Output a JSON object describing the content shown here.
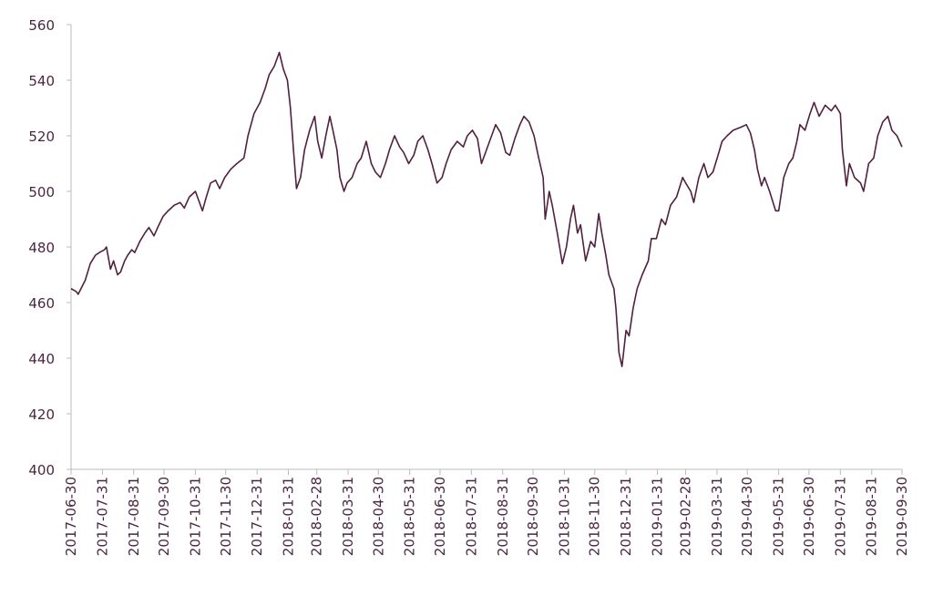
{
  "chart_data": {
    "type": "line",
    "x": [
      "2017-06-30",
      "2017-07-05",
      "2017-07-07",
      "2017-07-14",
      "2017-07-19",
      "2017-07-24",
      "2017-07-28",
      "2017-08-02",
      "2017-08-04",
      "2017-08-08",
      "2017-08-11",
      "2017-08-15",
      "2017-08-18",
      "2017-08-22",
      "2017-08-25",
      "2017-08-29",
      "2017-09-01",
      "2017-09-06",
      "2017-09-11",
      "2017-09-15",
      "2017-09-20",
      "2017-09-25",
      "2017-09-29",
      "2017-10-04",
      "2017-10-10",
      "2017-10-16",
      "2017-10-20",
      "2017-10-25",
      "2017-10-31",
      "2017-11-03",
      "2017-11-07",
      "2017-11-10",
      "2017-11-15",
      "2017-11-20",
      "2017-11-24",
      "2017-11-29",
      "2017-12-05",
      "2017-12-11",
      "2017-12-18",
      "2017-12-22",
      "2017-12-28",
      "2018-01-03",
      "2018-01-08",
      "2018-01-12",
      "2018-01-17",
      "2018-01-22",
      "2018-01-26",
      "2018-01-30",
      "2018-02-02",
      "2018-02-05",
      "2018-02-08",
      "2018-02-12",
      "2018-02-16",
      "2018-02-21",
      "2018-02-26",
      "2018-03-01",
      "2018-03-05",
      "2018-03-09",
      "2018-03-13",
      "2018-03-16",
      "2018-03-20",
      "2018-03-23",
      "2018-03-27",
      "2018-03-30",
      "2018-04-04",
      "2018-04-09",
      "2018-04-13",
      "2018-04-18",
      "2018-04-23",
      "2018-04-27",
      "2018-05-02",
      "2018-05-07",
      "2018-05-11",
      "2018-05-16",
      "2018-05-21",
      "2018-05-25",
      "2018-05-30",
      "2018-06-04",
      "2018-06-08",
      "2018-06-13",
      "2018-06-18",
      "2018-06-22",
      "2018-06-27",
      "2018-07-02",
      "2018-07-06",
      "2018-07-11",
      "2018-07-17",
      "2018-07-23",
      "2018-07-27",
      "2018-08-01",
      "2018-08-06",
      "2018-08-10",
      "2018-08-15",
      "2018-08-20",
      "2018-08-24",
      "2018-08-29",
      "2018-09-03",
      "2018-09-07",
      "2018-09-12",
      "2018-09-17",
      "2018-09-21",
      "2018-09-26",
      "2018-10-01",
      "2018-10-05",
      "2018-10-10",
      "2018-10-12",
      "2018-10-16",
      "2018-10-19",
      "2018-10-24",
      "2018-10-29",
      "2018-11-02",
      "2018-11-06",
      "2018-11-09",
      "2018-11-13",
      "2018-11-16",
      "2018-11-21",
      "2018-11-26",
      "2018-11-30",
      "2018-12-04",
      "2018-12-07",
      "2018-12-11",
      "2018-12-14",
      "2018-12-19",
      "2018-12-21",
      "2018-12-24",
      "2018-12-27",
      "2018-12-31",
      "2019-01-03",
      "2019-01-07",
      "2019-01-11",
      "2019-01-16",
      "2019-01-22",
      "2019-01-25",
      "2019-01-30",
      "2019-02-04",
      "2019-02-08",
      "2019-02-13",
      "2019-02-19",
      "2019-02-25",
      "2019-02-28",
      "2019-03-05",
      "2019-03-08",
      "2019-03-13",
      "2019-03-18",
      "2019-03-22",
      "2019-03-27",
      "2019-04-01",
      "2019-04-05",
      "2019-04-10",
      "2019-04-16",
      "2019-04-23",
      "2019-04-29",
      "2019-05-03",
      "2019-05-07",
      "2019-05-10",
      "2019-05-14",
      "2019-05-17",
      "2019-05-22",
      "2019-05-28",
      "2019-05-31",
      "2019-06-05",
      "2019-06-10",
      "2019-06-14",
      "2019-06-18",
      "2019-06-21",
      "2019-06-26",
      "2019-07-01",
      "2019-07-05",
      "2019-07-10",
      "2019-07-16",
      "2019-07-22",
      "2019-07-26",
      "2019-07-31",
      "2019-08-02",
      "2019-08-06",
      "2019-08-09",
      "2019-08-14",
      "2019-08-20",
      "2019-08-23",
      "2019-08-28",
      "2019-09-02",
      "2019-09-06",
      "2019-09-11",
      "2019-09-16",
      "2019-09-20",
      "2019-09-25",
      "2019-09-30"
    ],
    "series": [
      {
        "color": "#52203f",
        "values": [
          465,
          464,
          463,
          468,
          474,
          477,
          478,
          479,
          480,
          472,
          475,
          470,
          471,
          475,
          477,
          479,
          478,
          482,
          485,
          487,
          484,
          488,
          491,
          493,
          495,
          496,
          494,
          498,
          500,
          497,
          493,
          497,
          503,
          504,
          501,
          505,
          508,
          510,
          512,
          520,
          528,
          532,
          537,
          542,
          545,
          550,
          544,
          540,
          530,
          515,
          501,
          505,
          515,
          522,
          527,
          518,
          512,
          520,
          527,
          522,
          515,
          505,
          500,
          503,
          505,
          510,
          512,
          518,
          510,
          507,
          505,
          510,
          515,
          520,
          516,
          514,
          510,
          513,
          518,
          520,
          515,
          510,
          503,
          505,
          510,
          515,
          518,
          516,
          520,
          522,
          519,
          510,
          515,
          520,
          524,
          521,
          514,
          513,
          519,
          524,
          527,
          525,
          520,
          513,
          505,
          490,
          500,
          495,
          485,
          474,
          480,
          490,
          495,
          485,
          488,
          475,
          482,
          480,
          492,
          485,
          477,
          470,
          465,
          458,
          442,
          437,
          450,
          448,
          458,
          465,
          470,
          475,
          483,
          483,
          490,
          488,
          495,
          498,
          505,
          503,
          500,
          496,
          505,
          510,
          505,
          507,
          513,
          518,
          520,
          522,
          523,
          524,
          521,
          515,
          508,
          502,
          505,
          500,
          493,
          493,
          505,
          510,
          512,
          518,
          524,
          522,
          528,
          532,
          527,
          531,
          529,
          531,
          528,
          515,
          502,
          510,
          505,
          503,
          500,
          510,
          512,
          520,
          525,
          527,
          522,
          520,
          516
        ]
      }
    ],
    "xlim": [
      "2017-06-30",
      "2019-09-30"
    ],
    "xticks": [
      "2017-06-30",
      "2017-07-31",
      "2017-08-31",
      "2017-09-30",
      "2017-10-31",
      "2017-11-30",
      "2017-12-31",
      "2018-01-31",
      "2018-02-28",
      "2018-03-31",
      "2018-04-30",
      "2018-05-31",
      "2018-06-30",
      "2018-07-31",
      "2018-08-31",
      "2018-09-30",
      "2018-10-31",
      "2018-11-30",
      "2018-12-31",
      "2019-01-31",
      "2019-02-28",
      "2019-03-31",
      "2019-04-30",
      "2019-05-31",
      "2019-06-30",
      "2019-07-31",
      "2019-08-31",
      "2019-09-30"
    ],
    "ylim": [
      400,
      560
    ],
    "yticks": [
      400,
      420,
      440,
      460,
      480,
      500,
      520,
      540,
      560
    ]
  }
}
